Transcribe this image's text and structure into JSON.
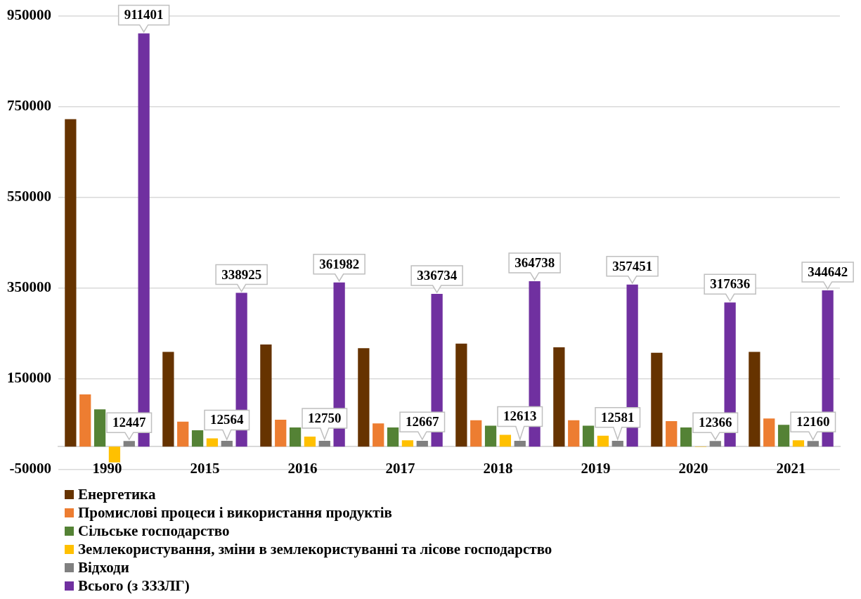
{
  "chart_data": {
    "type": "bar",
    "categories": [
      "1990",
      "2015",
      "2016",
      "2017",
      "2018",
      "2019",
      "2020",
      "2021"
    ],
    "series": [
      {
        "name": "Енергетика",
        "color": "#663300",
        "values": [
          722000,
          209000,
          225000,
          217000,
          227000,
          219000,
          207000,
          209000
        ]
      },
      {
        "name": "Промислові процеси і використання продуктів",
        "color": "#ed7d31",
        "values": [
          115000,
          55000,
          59000,
          51000,
          58000,
          58000,
          56000,
          62000
        ]
      },
      {
        "name": "Сільське господарство",
        "color": "#548235",
        "values": [
          82000,
          36000,
          42000,
          42000,
          46000,
          46000,
          42000,
          48000
        ]
      },
      {
        "name": "Землекористування, зміни в землекористуванні та лісове господарство",
        "color": "#ffc000",
        "values": [
          -35000,
          18000,
          22000,
          14000,
          26000,
          24000,
          -1000,
          14000
        ]
      },
      {
        "name": "Відходи",
        "color": "#808080",
        "values": [
          12447,
          12564,
          12750,
          12667,
          12613,
          12581,
          12366,
          12160
        ],
        "value_labels": [
          "12447",
          "12564",
          "12750",
          "12667",
          "12613",
          "12581",
          "12366",
          "12160"
        ]
      },
      {
        "name": "Всього (з ЗЗЗЛГ)",
        "color": "#7030a0",
        "values": [
          911401,
          338925,
          361982,
          336734,
          364738,
          357451,
          317636,
          344642
        ],
        "value_labels": [
          "911401",
          "338925",
          "361982",
          "336734",
          "364738",
          "357451",
          "317636",
          "344642"
        ]
      }
    ],
    "ylim": [
      -50000,
      950000
    ],
    "yticks": [
      -50000,
      150000,
      350000,
      550000,
      750000,
      950000
    ],
    "grid": "y",
    "legend": "bottom"
  }
}
